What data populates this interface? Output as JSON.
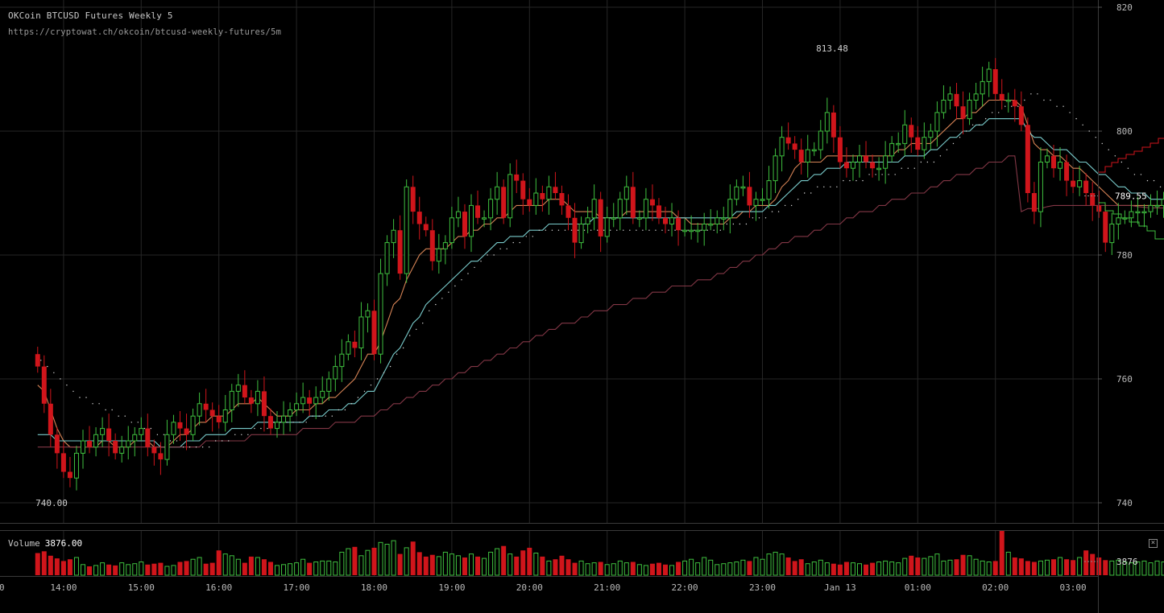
{
  "header": {
    "title": "OKCoin BTCUSD Futures Weekly 5",
    "url": "https://cryptowat.ch/okcoin/btcusd-weekly-futures/5m"
  },
  "volume_panel": {
    "label": "Volume",
    "value": "3876.00",
    "axis_value": "3876",
    "close_icon": "×"
  },
  "colors": {
    "up": "#3fbf3f",
    "down": "#d0151b",
    "ema_fast": "#e08a5a",
    "ema_slow": "#7fd6d6",
    "ma_long": "#8a3a4a",
    "dotted": "#dddddd",
    "grid": "#262626"
  },
  "chart_data": {
    "type": "candlestick",
    "y_ticks": [
      820,
      800,
      780,
      760,
      740
    ],
    "ylim": [
      738,
      821
    ],
    "last_price": "789.55",
    "high_label": "813.48",
    "low_label": "740.00",
    "x_ticks": [
      "14:00",
      "15:00",
      "16:00",
      "17:00",
      "18:00",
      "19:00",
      "20:00",
      "21:00",
      "22:00",
      "23:00",
      "Jan 13",
      "01:00",
      "02:00",
      "03:00"
    ],
    "x_edge_label": "0",
    "candles_per_hour": 12,
    "first_candle_offset": -8,
    "closes": [
      762,
      756,
      751,
      748,
      745,
      744,
      748,
      750,
      749,
      751,
      752,
      750,
      748,
      749,
      750,
      751,
      752,
      749,
      748,
      747,
      751,
      753,
      752,
      751,
      754,
      756,
      755,
      754,
      753,
      755,
      758,
      759,
      757,
      756,
      758,
      754,
      752,
      753,
      754,
      755,
      756,
      757,
      756,
      757,
      758,
      760,
      762,
      764,
      766,
      765,
      770,
      771,
      764,
      777,
      782,
      784,
      777,
      791,
      787,
      785,
      784,
      779,
      781,
      782,
      786,
      787,
      783,
      788,
      786,
      786,
      789,
      791,
      786,
      793,
      792,
      789,
      788,
      790,
      789,
      791,
      790,
      788,
      786,
      782,
      785,
      786,
      789,
      783,
      786,
      786,
      789,
      791,
      786,
      786,
      789,
      788,
      786,
      785,
      786,
      784,
      784,
      784,
      784,
      785,
      785,
      786,
      786,
      789,
      791,
      791,
      788,
      789,
      789,
      792,
      796,
      799,
      798,
      797,
      795,
      797,
      797,
      800,
      803,
      799,
      795,
      794,
      795,
      796,
      795,
      794,
      794,
      796,
      798,
      798,
      801,
      799,
      797,
      799,
      800,
      803,
      805,
      806,
      804,
      802,
      805,
      806,
      808,
      810,
      806,
      805,
      805,
      804,
      801,
      790,
      787,
      795,
      796,
      794,
      795,
      792,
      791,
      792,
      790,
      788,
      787,
      782,
      785,
      786,
      786,
      787,
      787,
      787,
      788,
      788,
      789,
      790,
      789,
      788,
      787,
      789,
      791,
      791,
      790,
      789.55
    ],
    "series": [
      {
        "name": "EMA",
        "color": "ema_fast",
        "values": [
          759,
          758,
          755,
          752,
          750,
          749,
          749,
          749,
          749,
          749,
          750,
          750,
          749,
          749,
          749,
          750,
          750,
          750,
          749,
          749,
          749,
          750,
          751,
          751,
          752,
          753,
          753,
          754,
          754,
          754,
          755,
          756,
          756,
          756,
          757,
          756,
          755,
          754,
          754,
          754,
          755,
          755,
          755,
          756,
          756,
          757,
          757,
          758,
          759,
          760,
          762,
          764,
          764,
          766,
          769,
          772,
          773,
          776,
          778,
          780,
          781,
          781,
          781,
          781,
          782,
          783,
          783,
          784,
          784,
          785,
          785,
          786,
          786,
          787,
          788,
          788,
          788,
          788,
          788,
          789,
          789,
          789,
          788,
          787,
          787,
          787,
          787,
          786,
          786,
          786,
          786,
          787,
          787,
          787,
          787,
          787,
          787,
          787,
          787,
          786,
          786,
          785,
          785,
          785,
          785,
          785,
          785,
          786,
          786,
          787,
          787,
          788,
          788,
          788,
          789,
          791,
          792,
          794,
          795,
          795,
          795,
          795,
          796,
          796,
          796,
          796,
          796,
          796,
          796,
          796,
          796,
          796,
          796,
          797,
          797,
          798,
          798,
          798,
          798,
          799,
          800,
          801,
          802,
          802,
          803,
          803,
          804,
          805,
          805,
          805,
          805,
          805,
          804,
          801,
          798,
          797,
          797,
          796,
          796,
          795,
          794,
          794,
          793,
          792,
          791,
          790,
          789,
          788,
          788,
          788,
          788,
          788,
          788,
          788,
          788,
          788,
          788,
          788,
          788,
          788,
          789,
          789,
          789,
          789.4
        ]
      },
      {
        "name": "EMA2",
        "color": "ema_slow",
        "values": [
          751,
          751,
          751,
          750,
          750,
          750,
          750,
          750,
          750,
          750,
          750,
          750,
          750,
          750,
          750,
          750,
          750,
          750,
          750,
          749,
          749,
          749,
          749,
          750,
          750,
          750,
          751,
          751,
          751,
          751,
          752,
          752,
          752,
          752,
          753,
          753,
          753,
          753,
          753,
          753,
          753,
          753,
          754,
          754,
          754,
          755,
          755,
          755,
          756,
          756,
          757,
          758,
          758,
          760,
          762,
          764,
          765,
          767,
          769,
          770,
          772,
          773,
          774,
          775,
          776,
          777,
          778,
          779,
          779,
          780,
          781,
          782,
          782,
          783,
          783,
          783,
          784,
          784,
          784,
          785,
          785,
          785,
          785,
          785,
          785,
          785,
          786,
          786,
          786,
          786,
          786,
          786,
          786,
          786,
          786,
          786,
          786,
          786,
          786,
          786,
          786,
          786,
          786,
          786,
          786,
          786,
          786,
          786,
          787,
          787,
          787,
          787,
          787,
          788,
          788,
          789,
          790,
          791,
          792,
          792,
          793,
          793,
          794,
          794,
          794,
          795,
          795,
          795,
          795,
          795,
          795,
          795,
          795,
          795,
          796,
          796,
          796,
          796,
          797,
          797,
          798,
          799,
          799,
          800,
          800,
          801,
          801,
          802,
          802,
          802,
          802,
          802,
          802,
          800,
          799,
          799,
          798,
          797,
          797,
          797,
          796,
          795,
          795,
          794,
          793,
          793,
          792,
          791,
          791,
          790,
          790,
          790,
          789,
          789,
          789,
          789,
          789,
          789,
          789,
          789,
          789,
          789,
          789,
          789.1
        ]
      },
      {
        "name": "MA",
        "color": "ma_long",
        "values": [
          749,
          749,
          749,
          749,
          749,
          749,
          749,
          749,
          749,
          749,
          749,
          749,
          749,
          749,
          749,
          749,
          749,
          749,
          749,
          749,
          749,
          749,
          749,
          749,
          749,
          749,
          750,
          750,
          750,
          750,
          750,
          750,
          750,
          751,
          751,
          751,
          751,
          751,
          751,
          751,
          751,
          752,
          752,
          752,
          752,
          752,
          753,
          753,
          753,
          753,
          754,
          754,
          754,
          755,
          755,
          756,
          756,
          757,
          757,
          758,
          758,
          759,
          759,
          760,
          760,
          761,
          761,
          762,
          762,
          763,
          763,
          764,
          764,
          765,
          765,
          766,
          766,
          767,
          767,
          768,
          768,
          769,
          769,
          769,
          770,
          770,
          771,
          771,
          771,
          772,
          772,
          772,
          773,
          773,
          773,
          774,
          774,
          774,
          775,
          775,
          775,
          775,
          776,
          776,
          776,
          777,
          777,
          778,
          778,
          779,
          779,
          780,
          780,
          781,
          781,
          782,
          782,
          783,
          783,
          783,
          784,
          784,
          785,
          785,
          785,
          786,
          786,
          787,
          787,
          787,
          788,
          788,
          789,
          789,
          789,
          790,
          790,
          790,
          791,
          791,
          792,
          792,
          793,
          793,
          793,
          794,
          794,
          795,
          795,
          795,
          796,
          796,
          787,
          787.5,
          787.5,
          787.5,
          787.8,
          788,
          788,
          788,
          788,
          788,
          788,
          788,
          788,
          788,
          788,
          788,
          788,
          788,
          787.8,
          787.7,
          787.6,
          787.6,
          787.6,
          787.6,
          787.6,
          787.6,
          787.6,
          787.6,
          787.7,
          787.7,
          787.8,
          788
        ]
      }
    ],
    "dotted_series": {
      "name": "Dotted",
      "values": [
        763,
        762,
        761,
        760,
        759,
        758,
        757,
        757,
        756,
        756,
        755,
        755,
        754,
        754,
        753,
        753,
        752,
        752,
        751,
        751,
        750,
        750,
        749,
        749,
        749,
        749,
        749,
        750,
        750,
        750,
        751,
        751,
        751,
        752,
        752,
        752,
        753,
        753,
        753,
        753,
        753,
        753,
        754,
        754,
        754,
        754,
        755,
        755,
        756,
        757,
        758,
        759,
        760,
        761,
        762,
        764,
        765,
        767,
        768,
        769,
        771,
        772,
        773,
        774,
        775,
        776,
        777,
        778,
        779,
        780,
        780,
        781,
        781,
        782,
        782,
        783,
        783,
        784,
        784,
        784,
        784,
        784,
        784,
        784,
        784,
        784,
        784,
        784,
        784,
        784,
        784,
        784,
        784,
        784,
        784,
        784,
        784,
        784,
        784,
        784,
        784,
        784,
        784,
        784,
        784,
        784,
        785,
        785,
        785,
        785,
        786,
        786,
        786,
        787,
        787,
        788,
        788,
        789,
        790,
        790,
        791,
        791,
        791,
        791,
        792,
        792,
        792,
        792,
        793,
        793,
        793,
        793,
        793,
        794,
        794,
        794,
        795,
        795,
        795,
        796,
        797,
        798,
        799,
        800,
        801,
        801,
        802,
        803,
        803,
        804,
        804,
        804,
        805,
        806,
        806,
        805,
        805,
        804,
        804,
        803,
        802,
        801,
        800,
        799,
        798,
        797,
        796,
        795,
        794,
        793,
        793,
        792,
        792,
        791,
        791,
        791,
        791,
        790,
        790,
        790,
        790,
        789,
        789,
        789
      ]
    },
    "volumes": [
      1.25,
      1.35,
      1.1,
      0.95,
      0.8,
      0.9,
      1.0,
      0.6,
      0.5,
      0.55,
      0.7,
      0.6,
      0.55,
      0.7,
      0.6,
      0.65,
      0.75,
      0.6,
      0.65,
      0.7,
      0.5,
      0.55,
      0.75,
      0.8,
      0.9,
      1.0,
      0.65,
      0.7,
      1.4,
      1.2,
      1.1,
      0.9,
      0.7,
      1.05,
      1.0,
      0.9,
      0.75,
      0.55,
      0.6,
      0.65,
      0.7,
      0.9,
      0.7,
      0.75,
      0.8,
      0.8,
      0.75,
      1.3,
      1.5,
      1.6,
      1.1,
      1.4,
      1.55,
      1.85,
      1.75,
      1.95,
      1.2,
      1.55,
      1.9,
      1.3,
      1.05,
      1.15,
      1.05,
      1.3,
      1.2,
      1.1,
      1.0,
      1.2,
      1.05,
      0.95,
      1.3,
      1.5,
      1.65,
      1.2,
      1.05,
      1.4,
      1.55,
      1.25,
      1.05,
      0.8,
      0.9,
      1.1,
      0.9,
      0.7,
      0.8,
      0.65,
      0.7,
      0.75,
      0.6,
      0.65,
      0.8,
      0.7,
      0.75,
      0.6,
      0.55,
      0.65,
      0.7,
      0.6,
      0.55,
      0.75,
      0.8,
      0.9,
      0.7,
      1.0,
      0.85,
      0.6,
      0.65,
      0.7,
      0.75,
      0.85,
      0.8,
      1.0,
      0.9,
      1.2,
      1.3,
      1.2,
      1.0,
      0.8,
      0.9,
      0.65,
      0.75,
      0.85,
      0.7,
      0.65,
      0.6,
      0.75,
      0.7,
      0.65,
      0.6,
      0.7,
      0.75,
      0.8,
      0.75,
      0.7,
      0.95,
      1.1,
      1.0,
      0.95,
      1.05,
      1.2,
      0.8,
      0.85,
      0.9,
      1.15,
      1.1,
      0.9,
      0.8,
      0.75,
      0.8,
      2.5,
      1.3,
      1.0,
      0.95,
      0.8,
      0.75,
      0.8,
      0.85,
      0.9,
      1.0,
      0.9,
      0.85,
      1.0,
      1.4,
      1.2,
      1.0,
      0.85,
      0.8,
      0.85,
      0.75,
      0.7,
      0.75,
      0.8,
      0.7,
      0.8,
      0.75,
      0.7,
      0.65,
      0.7,
      0.75,
      0.8,
      0.85,
      0.75,
      0.7
    ]
  }
}
